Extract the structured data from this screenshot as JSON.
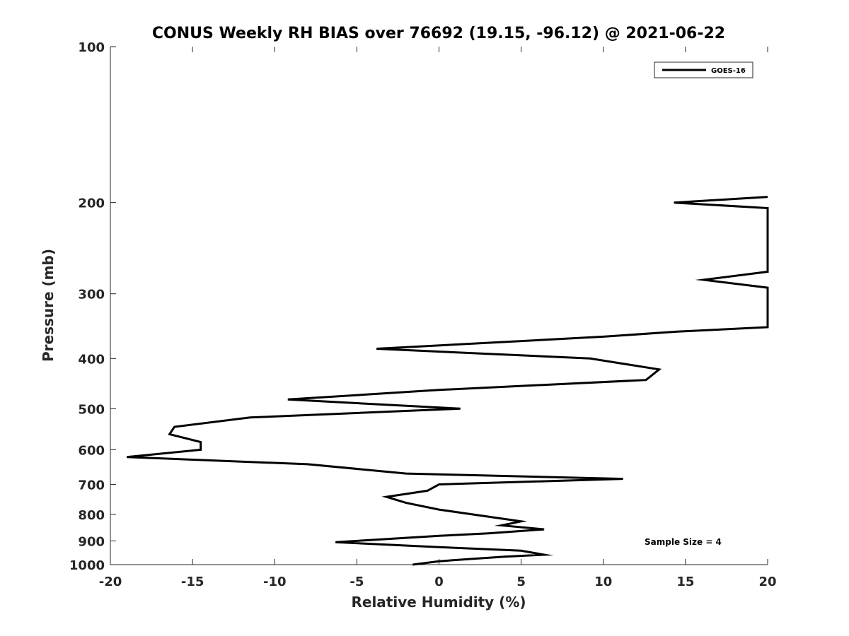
{
  "chart_data": {
    "type": "line",
    "title": "CONUS Weekly RH BIAS over 76692 (19.15, -96.12) @ 2021-06-22",
    "xlabel": "Relative Humidity (%)",
    "ylabel": "Pressure (mb)",
    "xlim": [
      -20,
      20
    ],
    "ylim": [
      100,
      1000
    ],
    "y_scale": "log",
    "y_direction": "reversed",
    "x_ticks": [
      "-20",
      "-15",
      "-10",
      "-5",
      "0",
      "5",
      "10",
      "15",
      "20"
    ],
    "y_ticks": [
      "100",
      "200",
      "300",
      "400",
      "500",
      "600",
      "700",
      "800",
      "900",
      "1000"
    ],
    "grid": false,
    "legend_position": "top-right",
    "series": [
      {
        "name": "GOES-16",
        "color": "#000000",
        "points": [
          {
            "x": 20.0,
            "y": 195
          },
          {
            "x": 14.3,
            "y": 200
          },
          {
            "x": 20.0,
            "y": 205
          },
          {
            "x": 20.0,
            "y": 272
          },
          {
            "x": 16.1,
            "y": 282
          },
          {
            "x": 20.0,
            "y": 292
          },
          {
            "x": 20.0,
            "y": 348
          },
          {
            "x": 14.5,
            "y": 355
          },
          {
            "x": 10.0,
            "y": 363
          },
          {
            "x": -3.8,
            "y": 383
          },
          {
            "x": 9.2,
            "y": 400
          },
          {
            "x": 13.4,
            "y": 420
          },
          {
            "x": 12.6,
            "y": 440
          },
          {
            "x": 0.0,
            "y": 460
          },
          {
            "x": -9.2,
            "y": 480
          },
          {
            "x": 1.3,
            "y": 500
          },
          {
            "x": -11.5,
            "y": 520
          },
          {
            "x": -16.1,
            "y": 542
          },
          {
            "x": -16.4,
            "y": 560
          },
          {
            "x": -14.5,
            "y": 580
          },
          {
            "x": -14.5,
            "y": 600
          },
          {
            "x": -19.0,
            "y": 620
          },
          {
            "x": -8.0,
            "y": 640
          },
          {
            "x": -2.0,
            "y": 667
          },
          {
            "x": 11.2,
            "y": 683
          },
          {
            "x": 0.0,
            "y": 700
          },
          {
            "x": -0.7,
            "y": 720
          },
          {
            "x": -3.2,
            "y": 740
          },
          {
            "x": -2.0,
            "y": 760
          },
          {
            "x": 0.0,
            "y": 783
          },
          {
            "x": 3.0,
            "y": 808
          },
          {
            "x": 5.0,
            "y": 825
          },
          {
            "x": 3.8,
            "y": 840
          },
          {
            "x": 6.4,
            "y": 855
          },
          {
            "x": 3.0,
            "y": 870
          },
          {
            "x": 0.0,
            "y": 880
          },
          {
            "x": -6.3,
            "y": 905
          },
          {
            "x": 0.0,
            "y": 925
          },
          {
            "x": 5.0,
            "y": 940
          },
          {
            "x": 6.4,
            "y": 957
          },
          {
            "x": 4.0,
            "y": 965
          },
          {
            "x": 2.0,
            "y": 975
          },
          {
            "x": 0.0,
            "y": 985
          },
          {
            "x": -1.6,
            "y": 1000
          }
        ]
      }
    ],
    "annotation": "Sample Size = 4"
  }
}
